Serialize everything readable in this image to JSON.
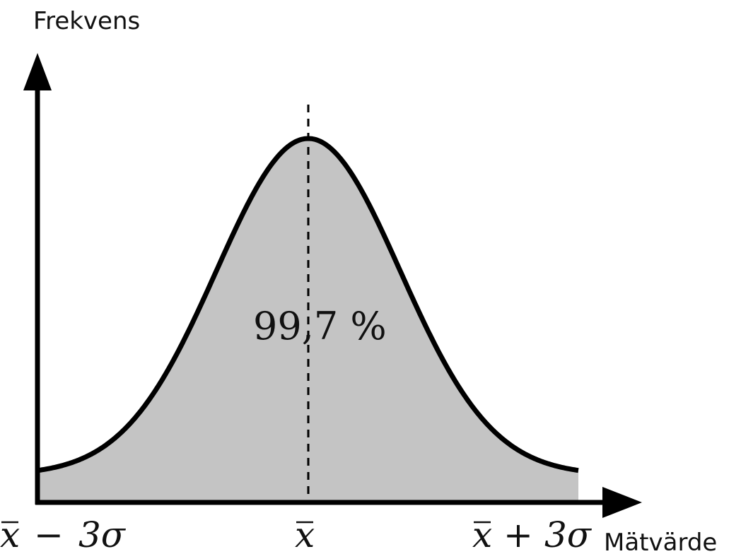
{
  "axes": {
    "y_label": "Frekvens",
    "x_label": "Mätvärde"
  },
  "area_label": "99,7 %",
  "ticks": {
    "left": {
      "base": "x",
      "operator": "−",
      "term": "3σ"
    },
    "center": {
      "base": "x"
    },
    "right": {
      "base": "x",
      "operator": "+",
      "term": "3σ"
    }
  },
  "colors": {
    "fill": "#c4c4c4",
    "stroke": "#000000"
  },
  "chart_data": {
    "type": "area",
    "distribution": "normal",
    "x_ticks": [
      "x̄ − 3σ",
      "x̄",
      "x̄ + 3σ"
    ],
    "shaded_fraction_percent": 99.7,
    "mean_marker": "dashed vertical line at x̄"
  }
}
